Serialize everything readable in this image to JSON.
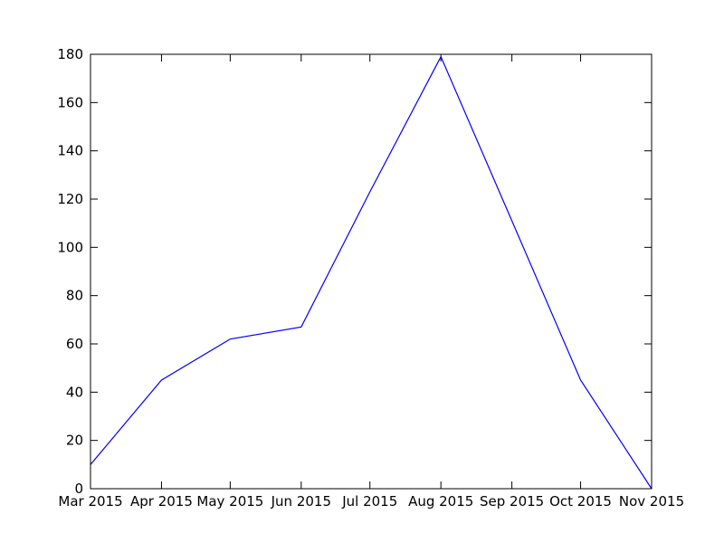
{
  "chart_data": {
    "type": "line",
    "title": "",
    "xlabel": "",
    "ylabel": "",
    "x": [
      "2015-03-01",
      "2015-04-01",
      "2015-05-01",
      "2015-06-01",
      "2015-07-01",
      "2015-08-01",
      "2015-09-01",
      "2015-10-01",
      "2015-11-01"
    ],
    "x_tick_labels": [
      "Mar 2015",
      "Apr 2015",
      "May 2015",
      "Jun 2015",
      "Jul 2015",
      "Aug 2015",
      "Sep 2015",
      "Oct 2015",
      "Nov 2015"
    ],
    "series": [
      {
        "color": "#0000ff",
        "values": [
          10,
          45,
          62,
          67,
          123,
          179,
          111,
          45,
          0
        ]
      }
    ],
    "y_ticks": [
      0,
      20,
      40,
      60,
      80,
      100,
      120,
      140,
      160,
      180
    ],
    "ylim": [
      0,
      180
    ],
    "xlim": [
      "2015-03-01",
      "2015-11-01"
    ],
    "grid": false,
    "legend": "none"
  }
}
